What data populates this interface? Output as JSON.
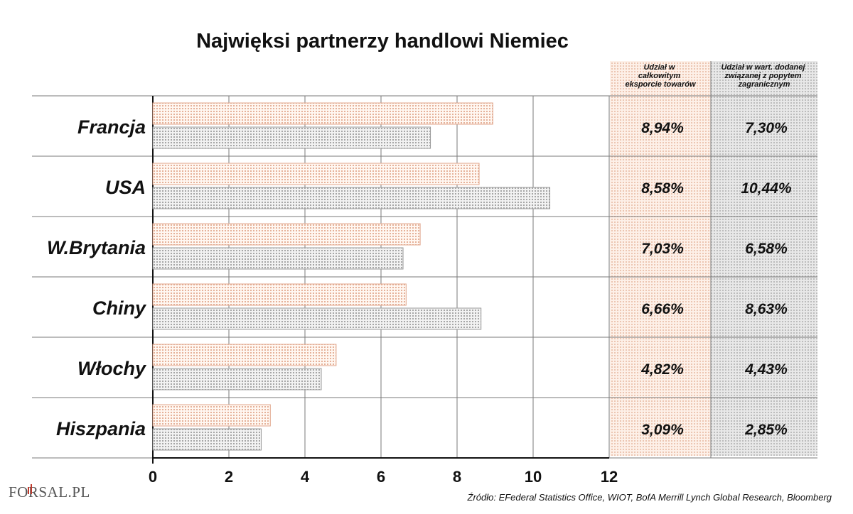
{
  "chart_data": {
    "type": "bar",
    "orientation": "horizontal",
    "title": "Najwięksi partnerzy handlowi Niemiec",
    "categories": [
      "Francja",
      "USA",
      "W.Brytania",
      "Chiny",
      "Włochy",
      "Hiszpania"
    ],
    "series": [
      {
        "name": "Udział w całkowitym eksporcie towarów",
        "color": "#e9b8a3",
        "values": [
          8.94,
          8.58,
          7.03,
          6.66,
          4.82,
          3.09
        ]
      },
      {
        "name": "Udział w wart. dodanej związanej z popytem zagranicznym",
        "color": "#aaaaaa",
        "values": [
          7.3,
          10.44,
          6.58,
          8.63,
          4.43,
          2.85
        ]
      }
    ],
    "table": {
      "headers": [
        "Udział w całkowitym eksporcie towarów",
        "Udział w wart. dodanej związanej z popytem zagranicznym"
      ],
      "col1": [
        "8,94%",
        "8,58%",
        "7,03%",
        "6,66%",
        "4,82%",
        "3,09%"
      ],
      "col2": [
        "7,30%",
        "10,44%",
        "6,58%",
        "8,63%",
        "4,43%",
        "2,85%"
      ]
    },
    "xlim": [
      0,
      12
    ],
    "xticks": [
      0,
      2,
      4,
      6,
      8,
      10,
      12
    ],
    "xlabel": "",
    "ylabel": "",
    "grid": true
  },
  "logo": {
    "text": "FORSAL.PL"
  },
  "source": "Źródło: EFederal Statistics Office, WIOT, BofA Merrill Lynch Global Research, Bloomberg",
  "colors": {
    "orange_bar": "#e9b8a3",
    "grey_bar": "#aaaaaa",
    "orange_bg": "#fbe6da",
    "grey_bg": "#d8d8d8",
    "logo_accent": "#c0392b"
  }
}
